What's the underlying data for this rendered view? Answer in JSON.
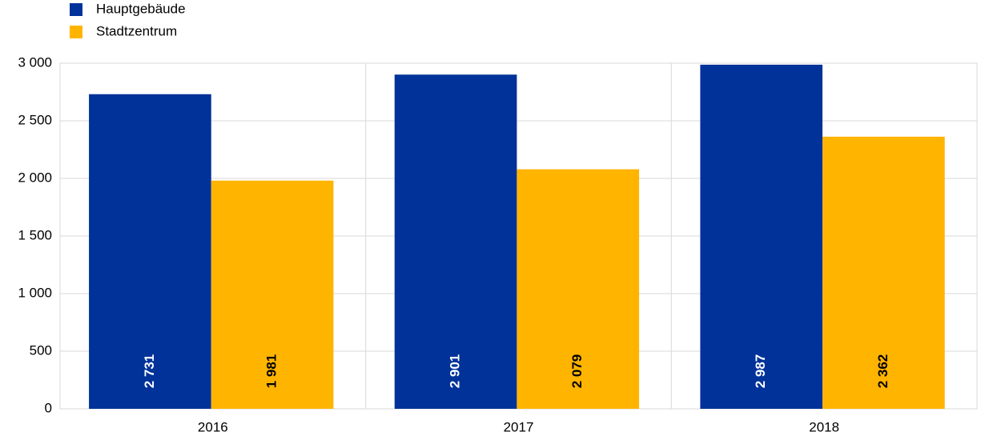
{
  "chart_data": {
    "type": "bar",
    "categories": [
      "2016",
      "2017",
      "2018"
    ],
    "series": [
      {
        "name": "Hauptgebäude",
        "color": "#003299",
        "values": [
          2731,
          2901,
          2987
        ],
        "value_labels": [
          "2 731",
          "2 901",
          "2 987"
        ]
      },
      {
        "name": "Stadtzentrum",
        "color": "#ffb400",
        "values": [
          1981,
          2079,
          2362
        ],
        "value_labels": [
          "1 981",
          "2 079",
          "2 362"
        ]
      }
    ],
    "ylim": [
      0,
      3000
    ],
    "yticks": [
      0,
      500,
      {
        "value": 1000,
        "label": "1 000"
      },
      {
        "value": 1500,
        "label": "1 500"
      },
      {
        "value": 2000,
        "label": "2 000"
      },
      {
        "value": 2500,
        "label": "2 500"
      },
      {
        "value": 3000,
        "label": "3 000"
      }
    ],
    "grid": true,
    "legend": "top-left"
  }
}
